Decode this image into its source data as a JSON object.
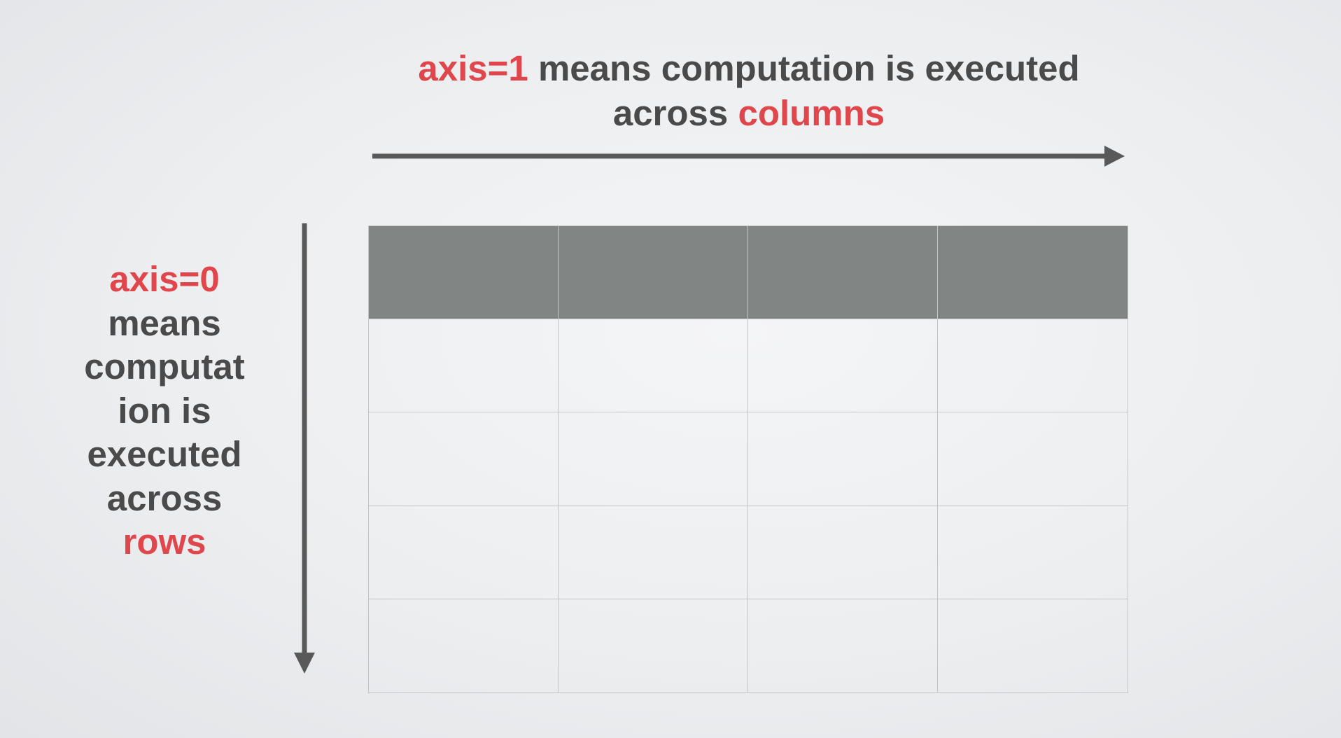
{
  "top_caption": {
    "highlight_1": "axis=1",
    "text_1": "means computation is executed",
    "text_2": "across",
    "highlight_2": "columns"
  },
  "left_caption": {
    "highlight_1": "axis=0",
    "line_2": "means",
    "line_3": "computat",
    "line_4": "ion is",
    "line_5": "executed",
    "line_6": "across",
    "highlight_2": "rows"
  },
  "colors": {
    "highlight": "#e0474c",
    "text": "#4a4a4a",
    "arrow": "#595959",
    "header_fill": "#818583",
    "grid_line": "#c4c5c7"
  },
  "table": {
    "columns": 4,
    "rows": 5,
    "header_rows": 1
  }
}
